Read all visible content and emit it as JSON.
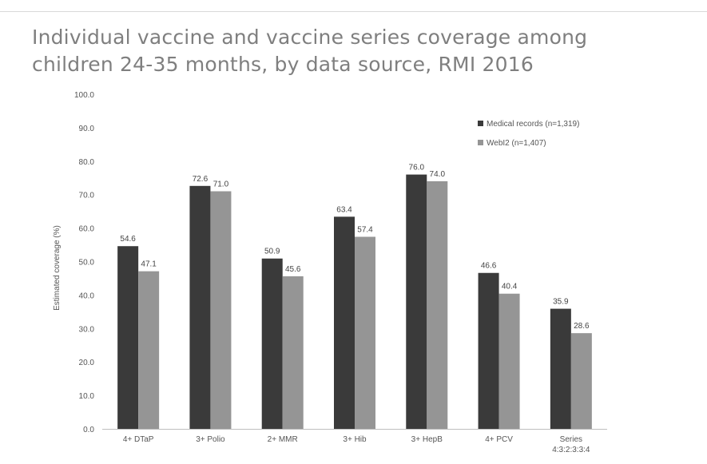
{
  "slide": {
    "title_lines": [
      "Individual vaccine and vaccine series coverage among",
      "children 24-35 months, by data source, RMI 2016"
    ]
  },
  "chart_data": {
    "type": "bar",
    "title": "Individual vaccine and vaccine series coverage among children 24-35 months, by data source, RMI 2016",
    "ylabel": "Estimated coverage (%)",
    "xlabel": "",
    "ylim": [
      0,
      100
    ],
    "yticks": [
      "0.0",
      "10.0",
      "20.0",
      "30.0",
      "40.0",
      "50.0",
      "60.0",
      "70.0",
      "80.0",
      "90.0",
      "100.0"
    ],
    "categories": [
      [
        "4+ DTaP"
      ],
      [
        "3+ Polio"
      ],
      [
        "2+ MMR"
      ],
      [
        "3+ Hib"
      ],
      [
        "3+ HepB"
      ],
      [
        "4+ PCV"
      ],
      [
        "Series",
        "4:3:2:3:3:4"
      ]
    ],
    "series": [
      {
        "name": "Medical records (n=1,319)",
        "color": "#3a3a3a",
        "values": [
          54.6,
          72.6,
          50.9,
          63.4,
          76.0,
          46.6,
          35.9
        ],
        "labels": [
          "54.6",
          "72.6",
          "50.9",
          "63.4",
          "76.0",
          "46.6",
          "35.9"
        ]
      },
      {
        "name": "WebI2 (n=1,407)",
        "color": "#959595",
        "values": [
          47.1,
          71.0,
          45.6,
          57.4,
          74.0,
          40.4,
          28.6
        ],
        "labels": [
          "47.1",
          "71.0",
          "45.6",
          "57.4",
          "74.0",
          "40.4",
          "28.6"
        ]
      }
    ],
    "legend_position": "top-right",
    "grid": false
  }
}
